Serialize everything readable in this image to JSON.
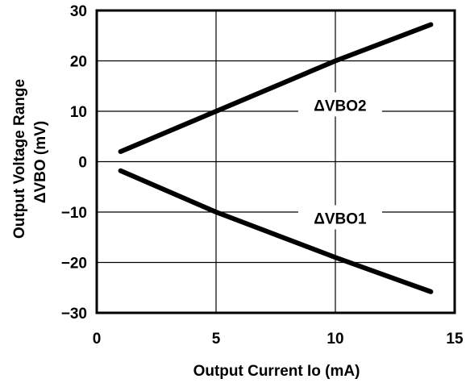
{
  "chart_data": {
    "type": "line",
    "title": "",
    "xlabel": "Output Current  Io  (mA)",
    "ylabel": "Output Voltage Range",
    "ylabel2": "ΔVBO  (mV)",
    "xlim": [
      0,
      15
    ],
    "ylim": [
      -30,
      30
    ],
    "xticks": [
      "0",
      "5",
      "10",
      "15"
    ],
    "yticks": [
      "30",
      "20",
      "10",
      "0",
      "−10",
      "−20",
      "−30"
    ],
    "grid": true,
    "series": [
      {
        "name": "ΔVBO2",
        "x": [
          1,
          5,
          10,
          14
        ],
        "y": [
          2,
          10,
          20,
          27.2
        ]
      },
      {
        "name": "ΔVBO1",
        "x": [
          1,
          5,
          10,
          14
        ],
        "y": [
          -1.8,
          -10,
          -19,
          -25.8
        ]
      }
    ]
  }
}
